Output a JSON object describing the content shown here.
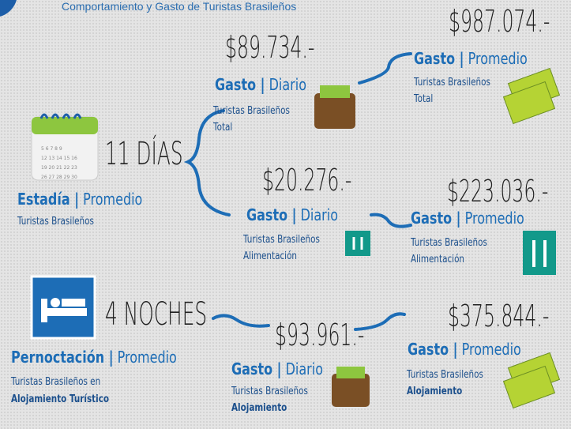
{
  "header": {
    "title": "Comportamiento y Gasto de Turistas Brasileños"
  },
  "stay": {
    "value": "11 DÍAS",
    "label_bold": "Estadía |",
    "label": "Promedio",
    "lines": [
      "Turistas Brasileños"
    ]
  },
  "nights": {
    "value": "4 NOCHES",
    "label_bold": "Pernoctación |",
    "label": "Promedio",
    "lines": [
      "Turistas Brasileños en",
      "Alojamiento Turístico"
    ]
  },
  "cards": [
    {
      "amount": "$89.734.-",
      "label_bold": "Gasto |",
      "label": "Diario",
      "lines": [
        "Turistas Brasileños",
        "Total"
      ]
    },
    {
      "amount": "$987.074.-",
      "label_bold": "Gasto |",
      "label": "Promedio",
      "lines": [
        "Turistas Brasileños",
        "Total"
      ]
    },
    {
      "amount": "$20.276.-",
      "label_bold": "Gasto |",
      "label": "Diario",
      "lines": [
        "Turistas Brasileños",
        "Alimentación"
      ]
    },
    {
      "amount": "$223.036.-",
      "label_bold": "Gasto |",
      "label": "Promedio",
      "lines": [
        "Turistas Brasileños",
        "Alimentación"
      ]
    },
    {
      "amount": "$93.961.-",
      "label_bold": "Gasto |",
      "label": "Diario",
      "lines": [
        "Turistas Brasileños",
        "Alojamiento"
      ]
    },
    {
      "amount": "$375.844.-",
      "label_bold": "Gasto |",
      "label": "Promedio",
      "lines": [
        "Turistas Brasileños",
        "Alojamiento"
      ]
    }
  ]
}
